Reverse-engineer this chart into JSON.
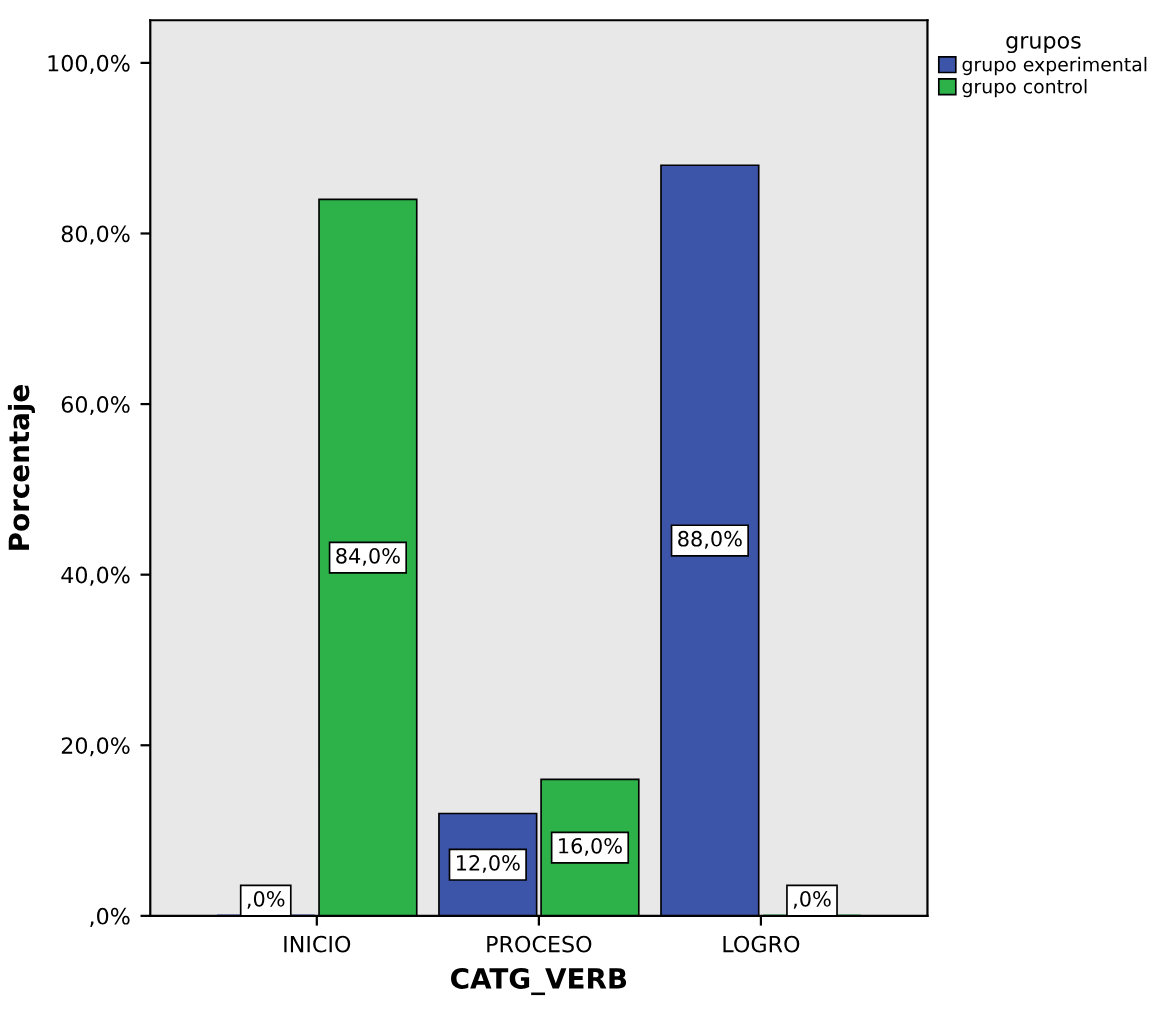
{
  "chart_data": {
    "type": "bar",
    "categories": [
      "INICIO",
      "PROCESO",
      "LOGRO"
    ],
    "series": [
      {
        "name": "grupo experimental",
        "color": "#3d55a8",
        "values": [
          0,
          12,
          88
        ],
        "value_labels": [
          ",0%",
          "12,0%",
          "88,0%"
        ]
      },
      {
        "name": "grupo control",
        "color": "#2db24a",
        "values": [
          84,
          16,
          0
        ],
        "value_labels": [
          "84,0%",
          "16,0%",
          ",0%"
        ]
      }
    ],
    "xlabel": "CATG_VERB",
    "ylabel": "Porcentaje",
    "legend_title": "grupos",
    "legend": "top right",
    "ylim": [
      0,
      105
    ],
    "yticks": [
      {
        "value": 0,
        "label": ",0%"
      },
      {
        "value": 20,
        "label": "20,0%"
      },
      {
        "value": 40,
        "label": "40,0%"
      },
      {
        "value": 60,
        "label": "60,0%"
      },
      {
        "value": 80,
        "label": "80,0%"
      },
      {
        "value": 100,
        "label": "100,0%"
      }
    ],
    "grid": false
  }
}
